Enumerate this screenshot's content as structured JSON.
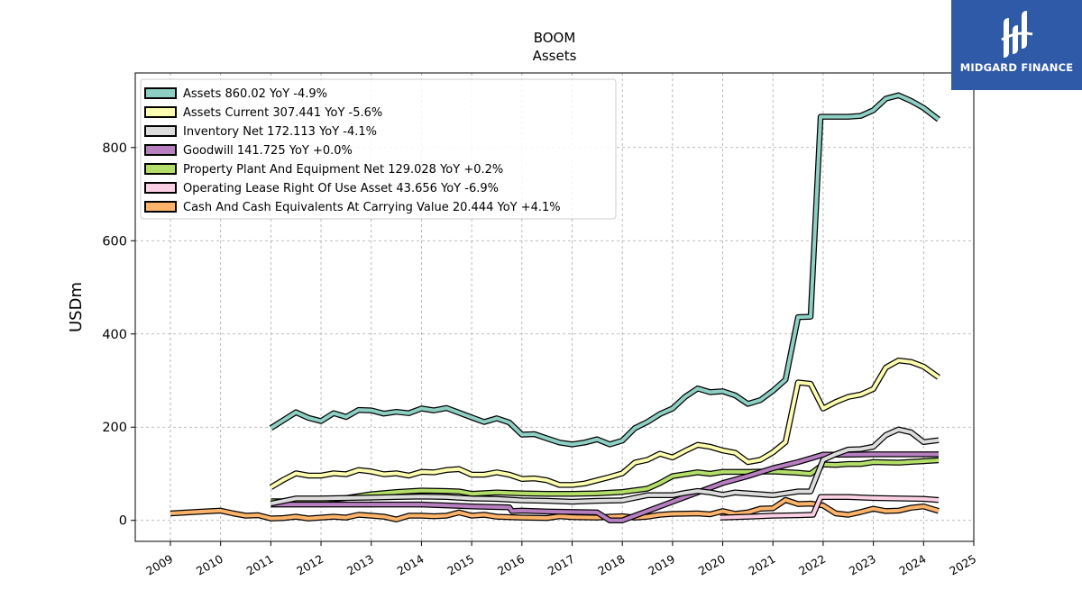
{
  "chart_data": {
    "type": "line",
    "title": "BOOM",
    "subtitle": "Assets",
    "ylabel": "USDm",
    "xlabel": "",
    "xlim": [
      2008.3,
      2025.0
    ],
    "ylim": [
      -45,
      960
    ],
    "yticks": [
      0,
      200,
      400,
      600,
      800
    ],
    "xticks": [
      "2009",
      "2010",
      "2011",
      "2012",
      "2013",
      "2014",
      "2015",
      "2016",
      "2017",
      "2018",
      "2019",
      "2020",
      "2021",
      "2022",
      "2023",
      "2024",
      "2025"
    ],
    "grid": true,
    "legend_position": "top-left",
    "series": [
      {
        "name": "Assets",
        "legend": "Assets  860.02 YoY -4.9%",
        "color": "#8ecfc4",
        "points": [
          [
            2011.0,
            198
          ],
          [
            2011.25,
            215
          ],
          [
            2011.5,
            232
          ],
          [
            2011.75,
            220
          ],
          [
            2012.0,
            213
          ],
          [
            2012.25,
            230
          ],
          [
            2012.5,
            222
          ],
          [
            2012.75,
            237
          ],
          [
            2013.0,
            236
          ],
          [
            2013.25,
            229
          ],
          [
            2013.5,
            233
          ],
          [
            2013.75,
            230
          ],
          [
            2014.0,
            240
          ],
          [
            2014.25,
            236
          ],
          [
            2014.5,
            241
          ],
          [
            2014.75,
            231
          ],
          [
            2015.0,
            221
          ],
          [
            2015.25,
            211
          ],
          [
            2015.5,
            219
          ],
          [
            2015.75,
            210
          ],
          [
            2016.0,
            184
          ],
          [
            2016.25,
            185
          ],
          [
            2016.5,
            176
          ],
          [
            2016.75,
            167
          ],
          [
            2017.0,
            163
          ],
          [
            2017.25,
            167
          ],
          [
            2017.5,
            174
          ],
          [
            2017.75,
            163
          ],
          [
            2018.0,
            171
          ],
          [
            2018.25,
            198
          ],
          [
            2018.5,
            211
          ],
          [
            2018.75,
            228
          ],
          [
            2019.0,
            240
          ],
          [
            2019.25,
            265
          ],
          [
            2019.5,
            283
          ],
          [
            2019.75,
            275
          ],
          [
            2020.0,
            277
          ],
          [
            2020.25,
            268
          ],
          [
            2020.5,
            250
          ],
          [
            2020.75,
            258
          ],
          [
            2021.0,
            278
          ],
          [
            2021.25,
            302
          ],
          [
            2021.5,
            436
          ],
          [
            2021.75,
            437
          ],
          [
            2021.95,
            866
          ],
          [
            2022.25,
            866
          ],
          [
            2022.5,
            866
          ],
          [
            2022.75,
            868
          ],
          [
            2023.0,
            880
          ],
          [
            2023.25,
            905
          ],
          [
            2023.5,
            912
          ],
          [
            2023.75,
            900
          ],
          [
            2024.0,
            885
          ],
          [
            2024.3,
            860
          ]
        ]
      },
      {
        "name": "Assets Current",
        "legend": "Assets Current  307.441 YoY -5.6%",
        "color": "#fdfdb0",
        "points": [
          [
            2011.0,
            71
          ],
          [
            2011.25,
            87
          ],
          [
            2011.5,
            101
          ],
          [
            2011.75,
            96
          ],
          [
            2012.0,
            96
          ],
          [
            2012.25,
            101
          ],
          [
            2012.5,
            99
          ],
          [
            2012.75,
            108
          ],
          [
            2013.0,
            105
          ],
          [
            2013.25,
            99
          ],
          [
            2013.5,
            101
          ],
          [
            2013.75,
            96
          ],
          [
            2014.0,
            104
          ],
          [
            2014.25,
            103
          ],
          [
            2014.5,
            108
          ],
          [
            2014.75,
            110
          ],
          [
            2015.0,
            98
          ],
          [
            2015.25,
            98
          ],
          [
            2015.5,
            103
          ],
          [
            2015.75,
            98
          ],
          [
            2016.0,
            89
          ],
          [
            2016.25,
            90
          ],
          [
            2016.5,
            86
          ],
          [
            2016.75,
            76
          ],
          [
            2017.0,
            76
          ],
          [
            2017.25,
            79
          ],
          [
            2017.5,
            86
          ],
          [
            2017.75,
            93
          ],
          [
            2018.0,
            101
          ],
          [
            2018.25,
            124
          ],
          [
            2018.5,
            130
          ],
          [
            2018.75,
            143
          ],
          [
            2019.0,
            135
          ],
          [
            2019.25,
            149
          ],
          [
            2019.5,
            162
          ],
          [
            2019.75,
            158
          ],
          [
            2020.0,
            150
          ],
          [
            2020.25,
            145
          ],
          [
            2020.5,
            125
          ],
          [
            2020.75,
            130
          ],
          [
            2021.0,
            146
          ],
          [
            2021.25,
            168
          ],
          [
            2021.5,
            296
          ],
          [
            2021.75,
            293
          ],
          [
            2022.0,
            240
          ],
          [
            2022.25,
            254
          ],
          [
            2022.5,
            265
          ],
          [
            2022.75,
            270
          ],
          [
            2023.0,
            282
          ],
          [
            2023.25,
            328
          ],
          [
            2023.5,
            343
          ],
          [
            2023.75,
            340
          ],
          [
            2024.0,
            330
          ],
          [
            2024.3,
            307
          ]
        ]
      },
      {
        "name": "Inventory Net",
        "legend": "Inventory Net  172.113 YoY -4.1%",
        "color": "#dcdcdc",
        "points": [
          [
            2011.0,
            36
          ],
          [
            2011.5,
            47
          ],
          [
            2012.0,
            47
          ],
          [
            2012.5,
            48
          ],
          [
            2013.0,
            49
          ],
          [
            2013.5,
            50
          ],
          [
            2014.0,
            51
          ],
          [
            2014.5,
            50
          ],
          [
            2015.0,
            47
          ],
          [
            2015.5,
            46
          ],
          [
            2016.0,
            43
          ],
          [
            2016.5,
            42
          ],
          [
            2017.0,
            40
          ],
          [
            2017.5,
            42
          ],
          [
            2018.0,
            43
          ],
          [
            2018.5,
            54
          ],
          [
            2019.0,
            54
          ],
          [
            2019.25,
            59
          ],
          [
            2019.5,
            63
          ],
          [
            2019.75,
            60
          ],
          [
            2020.0,
            55
          ],
          [
            2020.25,
            60
          ],
          [
            2020.5,
            58
          ],
          [
            2020.75,
            56
          ],
          [
            2021.0,
            54
          ],
          [
            2021.25,
            58
          ],
          [
            2021.5,
            62
          ],
          [
            2021.75,
            62
          ],
          [
            2022.0,
            130
          ],
          [
            2022.25,
            142
          ],
          [
            2022.5,
            152
          ],
          [
            2022.75,
            153
          ],
          [
            2023.0,
            158
          ],
          [
            2023.25,
            183
          ],
          [
            2023.5,
            195
          ],
          [
            2023.75,
            189
          ],
          [
            2024.0,
            168
          ],
          [
            2024.3,
            172
          ]
        ]
      },
      {
        "name": "Goodwill",
        "legend": "Goodwill  141.725 YoY +0.0%",
        "color": "#b77fc0",
        "points": [
          [
            2011.0,
            34
          ],
          [
            2012.0,
            34
          ],
          [
            2013.0,
            34
          ],
          [
            2014.0,
            34
          ],
          [
            2015.0,
            30
          ],
          [
            2015.75,
            28
          ],
          [
            2015.8,
            20
          ],
          [
            2016.0,
            21
          ],
          [
            2016.5,
            19
          ],
          [
            2017.0,
            18
          ],
          [
            2017.5,
            17
          ],
          [
            2017.75,
            0
          ],
          [
            2018.0,
            0
          ],
          [
            2018.5,
            20
          ],
          [
            2019.0,
            40
          ],
          [
            2019.5,
            60
          ],
          [
            2020.0,
            80
          ],
          [
            2020.5,
            95
          ],
          [
            2021.0,
            112
          ],
          [
            2021.5,
            125
          ],
          [
            2022.0,
            141
          ],
          [
            2022.5,
            141
          ],
          [
            2023.0,
            141.7
          ],
          [
            2023.5,
            141.7
          ],
          [
            2024.0,
            141.7
          ],
          [
            2024.3,
            141.7
          ]
        ]
      },
      {
        "name": "Property Plant And Equipment Net",
        "legend": "Property Plant And Equipment Net  129.028 YoY +0.2%",
        "color": "#b3de69",
        "points": [
          [
            2011.0,
            41
          ],
          [
            2011.5,
            41
          ],
          [
            2012.0,
            43
          ],
          [
            2012.5,
            48
          ],
          [
            2013.0,
            56
          ],
          [
            2013.5,
            61
          ],
          [
            2014.0,
            64
          ],
          [
            2014.5,
            63
          ],
          [
            2014.75,
            62
          ],
          [
            2015.0,
            57
          ],
          [
            2015.5,
            60
          ],
          [
            2016.0,
            58
          ],
          [
            2016.5,
            57
          ],
          [
            2017.0,
            57
          ],
          [
            2017.5,
            58
          ],
          [
            2018.0,
            61
          ],
          [
            2018.5,
            68
          ],
          [
            2018.75,
            80
          ],
          [
            2019.0,
            95
          ],
          [
            2019.5,
            103
          ],
          [
            2019.75,
            100
          ],
          [
            2020.0,
            104
          ],
          [
            2020.5,
            104
          ],
          [
            2021.0,
            105
          ],
          [
            2021.5,
            102
          ],
          [
            2021.75,
            100
          ],
          [
            2022.0,
            120
          ],
          [
            2022.25,
            119
          ],
          [
            2022.5,
            121
          ],
          [
            2022.75,
            121
          ],
          [
            2023.0,
            125
          ],
          [
            2023.5,
            124
          ],
          [
            2024.0,
            127
          ],
          [
            2024.3,
            129
          ]
        ]
      },
      {
        "name": "Operating Lease Right Of Use Asset",
        "legend": "Operating Lease Right Of Use Asset  43.656 YoY -6.9%",
        "color": "#fcd0e4",
        "points": [
          [
            2019.95,
            6
          ],
          [
            2020.5,
            8
          ],
          [
            2021.0,
            10
          ],
          [
            2021.5,
            11
          ],
          [
            2021.8,
            12
          ],
          [
            2021.95,
            50
          ],
          [
            2022.5,
            50
          ],
          [
            2023.0,
            48
          ],
          [
            2023.5,
            47
          ],
          [
            2024.0,
            46
          ],
          [
            2024.3,
            43.7
          ]
        ]
      },
      {
        "name": "Cash And Cash Equivalents At Carrying Value",
        "legend": "Cash And Cash Equivalents At Carrying Value  20.444 YoY +4.1%",
        "color": "#fdb46a",
        "points": [
          [
            2009.0,
            15
          ],
          [
            2009.5,
            18
          ],
          [
            2010.0,
            21
          ],
          [
            2010.25,
            15
          ],
          [
            2010.5,
            10
          ],
          [
            2010.75,
            11
          ],
          [
            2011.0,
            4
          ],
          [
            2011.25,
            5
          ],
          [
            2011.5,
            8
          ],
          [
            2011.75,
            4
          ],
          [
            2012.0,
            6
          ],
          [
            2012.25,
            8
          ],
          [
            2012.5,
            6
          ],
          [
            2012.75,
            12
          ],
          [
            2013.0,
            10
          ],
          [
            2013.25,
            8
          ],
          [
            2013.5,
            2
          ],
          [
            2013.75,
            10
          ],
          [
            2014.0,
            10
          ],
          [
            2014.25,
            9
          ],
          [
            2014.5,
            10
          ],
          [
            2014.75,
            17
          ],
          [
            2015.0,
            10
          ],
          [
            2015.25,
            12
          ],
          [
            2015.5,
            8
          ],
          [
            2015.75,
            7
          ],
          [
            2016.0,
            6
          ],
          [
            2016.5,
            5
          ],
          [
            2016.75,
            9
          ],
          [
            2017.0,
            7
          ],
          [
            2017.5,
            6
          ],
          [
            2017.75,
            8
          ],
          [
            2018.0,
            9
          ],
          [
            2018.25,
            6
          ],
          [
            2018.5,
            8
          ],
          [
            2018.75,
            12
          ],
          [
            2019.0,
            14
          ],
          [
            2019.5,
            15
          ],
          [
            2019.75,
            13
          ],
          [
            2020.0,
            20
          ],
          [
            2020.25,
            14
          ],
          [
            2020.5,
            17
          ],
          [
            2020.75,
            25
          ],
          [
            2021.0,
            26
          ],
          [
            2021.25,
            44
          ],
          [
            2021.5,
            35
          ],
          [
            2021.75,
            36
          ],
          [
            2022.0,
            32
          ],
          [
            2022.25,
            15
          ],
          [
            2022.5,
            12
          ],
          [
            2022.75,
            18
          ],
          [
            2023.0,
            25
          ],
          [
            2023.25,
            20
          ],
          [
            2023.5,
            21
          ],
          [
            2023.75,
            27
          ],
          [
            2024.0,
            30
          ],
          [
            2024.3,
            20.4
          ]
        ]
      }
    ]
  },
  "logo": {
    "text": "MIDGARD FINANCE",
    "background": "#2f5aa8"
  }
}
